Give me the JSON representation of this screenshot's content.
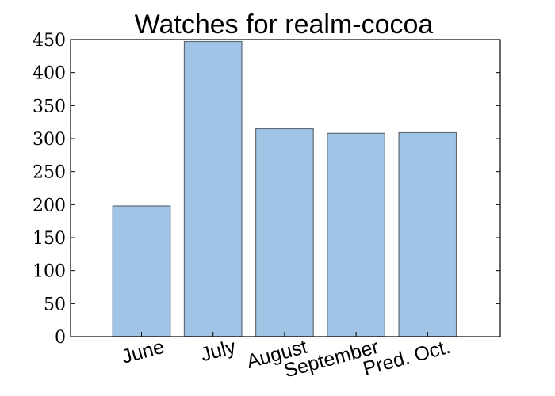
{
  "chart_data": {
    "type": "bar",
    "title": "Watches for realm-cocoa",
    "categories": [
      "June",
      "July",
      "August",
      "September",
      "Pred. Oct."
    ],
    "values": [
      198,
      447,
      315,
      308,
      309
    ],
    "ylim": [
      0,
      450
    ],
    "yticks": [
      0,
      50,
      100,
      150,
      200,
      250,
      300,
      350,
      400,
      450
    ],
    "xlabel": "",
    "ylabel": "",
    "grid": false,
    "colors": {
      "bar_fill": "#a0c4e6",
      "bar_edge": "#5e6a74"
    }
  }
}
